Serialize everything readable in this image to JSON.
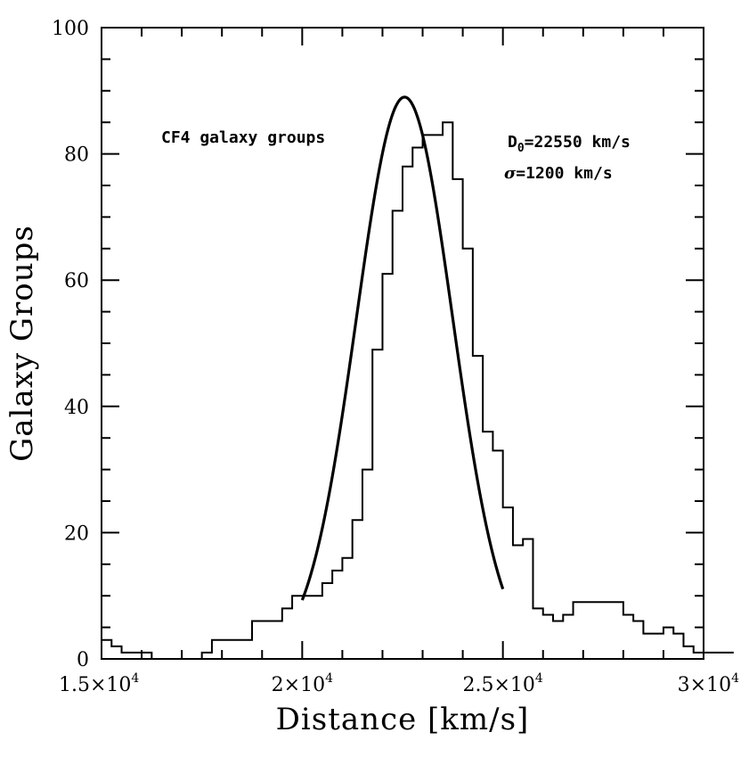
{
  "chart_data": {
    "type": "line",
    "title": "",
    "xlabel": "Distance [km/s]",
    "ylabel": "Galaxy Groups",
    "xlim": [
      15000,
      30000
    ],
    "ylim": [
      0,
      100
    ],
    "x_ticks": [
      15000,
      20000,
      25000,
      30000
    ],
    "x_tick_labels": [
      "1.5×10",
      "2×10",
      "2.5×10",
      "3×10"
    ],
    "x_tick_exponent": "4",
    "y_ticks": [
      0,
      20,
      40,
      60,
      80,
      100
    ],
    "y_tick_labels": [
      "0",
      "20",
      "40",
      "60",
      "80",
      "100"
    ],
    "grid": false,
    "annotations": {
      "label": "CF4 galaxy groups",
      "d0_symbol": "D",
      "d0_subscript": "0",
      "d0_value": "=22550 km/s",
      "sigma_symbol": "σ",
      "sigma_value": "=1200 km/s"
    },
    "series": [
      {
        "kind": "histogram",
        "bin_width": 250,
        "bins_start": 15000,
        "counts": [
          3,
          2,
          1,
          1,
          1,
          0,
          0,
          0,
          0,
          0,
          1,
          3,
          3,
          3,
          3,
          6,
          6,
          6,
          8,
          10,
          10,
          10,
          12,
          14,
          16,
          22,
          30,
          49,
          61,
          71,
          78,
          81,
          83,
          83,
          85,
          76,
          65,
          48,
          36,
          33,
          24,
          18,
          19,
          8,
          7,
          6,
          7,
          9,
          9,
          9,
          9,
          9,
          7,
          6,
          4,
          4,
          5,
          4,
          2,
          1,
          1,
          1,
          1,
          1
        ]
      },
      {
        "kind": "gaussian",
        "amplitude": 89,
        "mean": 22550,
        "sigma": 1200,
        "x_range": [
          20000,
          25000
        ]
      }
    ]
  }
}
